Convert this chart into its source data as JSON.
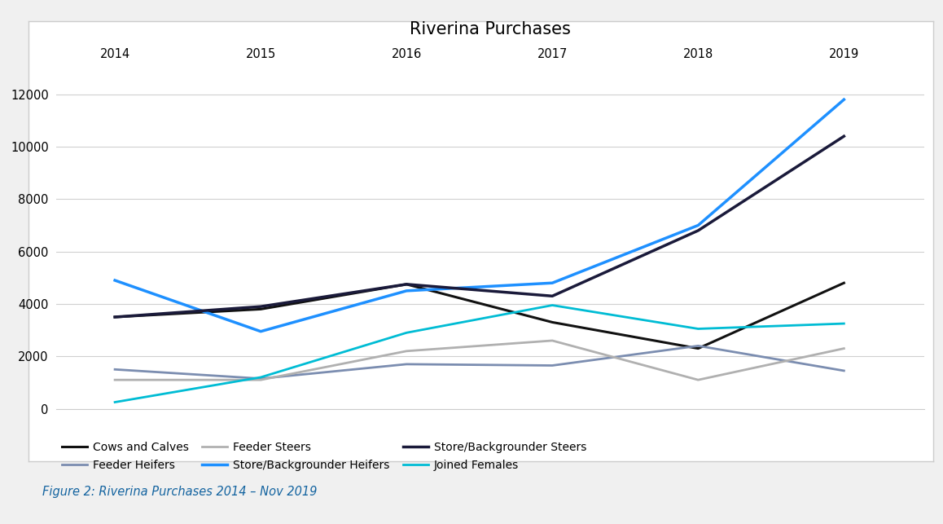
{
  "title": "Riverina Purchases",
  "caption": "Figure 2: Riverina Purchases 2014 – Nov 2019",
  "years": [
    2014,
    2015,
    2016,
    2017,
    2018,
    2019
  ],
  "series_order": [
    "Cows and Calves",
    "Feeder Heifers",
    "Feeder Steers",
    "Store/Backgrounder Heifers",
    "Store/Backgrounder Steers",
    "Joined Females"
  ],
  "series": {
    "Cows and Calves": {
      "values": [
        3500,
        3800,
        4750,
        3300,
        2300,
        4800
      ],
      "color": "#111111",
      "linewidth": 2.2
    },
    "Feeder Heifers": {
      "values": [
        1500,
        1150,
        1700,
        1650,
        2400,
        1450
      ],
      "color": "#7b8db0",
      "linewidth": 2.0
    },
    "Feeder Steers": {
      "values": [
        1100,
        1100,
        2200,
        2600,
        1100,
        2300
      ],
      "color": "#b0b0b0",
      "linewidth": 2.0
    },
    "Store/Backgrounder Heifers": {
      "values": [
        4900,
        2950,
        4500,
        4800,
        7000,
        11800
      ],
      "color": "#1e90ff",
      "linewidth": 2.5
    },
    "Store/Backgrounder Steers": {
      "values": [
        3500,
        3900,
        4750,
        4300,
        6800,
        10400
      ],
      "color": "#1a1a3a",
      "linewidth": 2.5
    },
    "Joined Females": {
      "values": [
        250,
        1200,
        2900,
        3950,
        3050,
        3250
      ],
      "color": "#00bcd4",
      "linewidth": 2.0
    }
  },
  "ylim": [
    0,
    13000
  ],
  "yticks": [
    0,
    2000,
    4000,
    6000,
    8000,
    10000,
    12000
  ],
  "xlim": [
    2013.6,
    2019.55
  ],
  "background_color": "#f5f5f5",
  "plot_bg_color": "#ffffff",
  "outer_bg_color": "#f0f0f0",
  "grid_color": "#d0d0d0",
  "border_color": "#cccccc",
  "title_fontsize": 15,
  "tick_fontsize": 10.5,
  "legend_fontsize": 10,
  "caption_fontsize": 10.5,
  "caption_color": "#1464a0"
}
